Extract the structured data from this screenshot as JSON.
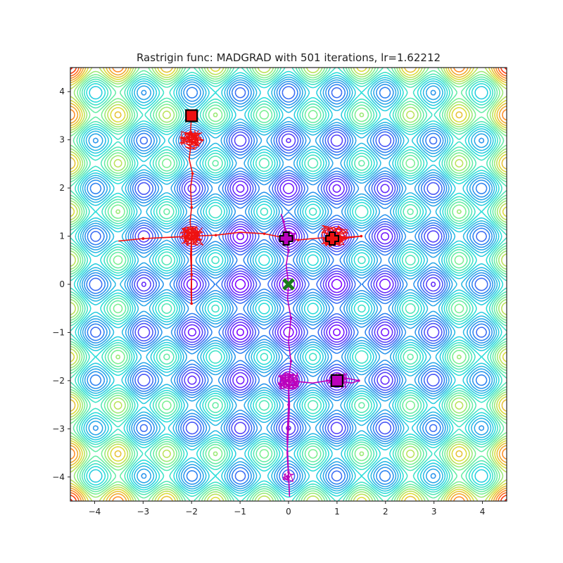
{
  "chart_data": {
    "type": "contour",
    "title": "Rastrigin func: MADGRAD with 501 iterations, lr=1.62212",
    "xlabel": "",
    "ylabel": "",
    "xlim": [
      -4.5,
      4.5
    ],
    "ylim": [
      -4.5,
      4.5
    ],
    "xticks": [
      -4,
      -3,
      -2,
      -1,
      0,
      1,
      2,
      3,
      4
    ],
    "yticks": [
      -4,
      -3,
      -2,
      -1,
      0,
      1,
      2,
      3,
      4
    ],
    "xtick_labels": [
      "−4",
      "−3",
      "−2",
      "−1",
      "0",
      "1",
      "2",
      "3",
      "4"
    ],
    "ytick_labels": [
      "−4",
      "−3",
      "−2",
      "−1",
      "0",
      "1",
      "2",
      "3",
      "4"
    ],
    "grid": false,
    "function": "Rastrigin",
    "colormap": "rainbow",
    "global_minimum": {
      "x": 0,
      "y": 0,
      "marker": "x",
      "color": "#1a7a1a"
    },
    "series": [
      {
        "color": "#ee1111",
        "start": {
          "x": -2.0,
          "y": 3.5,
          "marker": "square"
        },
        "end": {
          "x": 0.9,
          "y": 0.95,
          "marker": "plus"
        },
        "clusters": [
          {
            "x": -2.0,
            "y": 3.0,
            "spread": 0.25,
            "count": 60
          },
          {
            "x": -2.0,
            "y": 1.0,
            "spread": 0.25,
            "count": 70
          },
          {
            "x": 0.95,
            "y": 1.0,
            "spread": 0.28,
            "count": 60
          }
        ],
        "path": [
          [
            -2.0,
            3.5
          ],
          [
            -2.02,
            3.2
          ],
          [
            -2.0,
            3.0
          ],
          [
            -2.05,
            2.6
          ],
          [
            -1.98,
            2.3
          ],
          [
            -2.02,
            2.0
          ],
          [
            -2.0,
            1.6
          ],
          [
            -2.03,
            1.3
          ],
          [
            -2.0,
            1.0
          ],
          [
            -2.02,
            0.6
          ],
          [
            -2.0,
            0.2
          ],
          [
            -2.01,
            -0.15
          ],
          [
            -2.0,
            -0.4
          ],
          [
            -2.0,
            0.2
          ],
          [
            -2.0,
            1.0
          ],
          [
            -2.35,
            0.98
          ],
          [
            -3.0,
            0.95
          ],
          [
            -3.5,
            0.9
          ],
          [
            -3.0,
            0.95
          ],
          [
            -2.0,
            1.0
          ],
          [
            -1.5,
            1.02
          ],
          [
            -1.0,
            1.08
          ],
          [
            -0.5,
            1.05
          ],
          [
            0.0,
            0.95
          ],
          [
            0.2,
            0.92
          ],
          [
            0.5,
            0.95
          ],
          [
            0.9,
            0.98
          ],
          [
            1.2,
            0.98
          ],
          [
            1.5,
            1.0
          ],
          [
            1.2,
            0.96
          ],
          [
            0.9,
            0.95
          ]
        ]
      },
      {
        "color": "#bb00bb",
        "start": {
          "x": 1.0,
          "y": -2.0,
          "marker": "square"
        },
        "end": {
          "x": -0.05,
          "y": 0.95,
          "marker": "plus"
        },
        "clusters": [
          {
            "x": 0.0,
            "y": -2.0,
            "spread": 0.22,
            "count": 80
          },
          {
            "x": 1.0,
            "y": -2.0,
            "spread": 0.2,
            "count": 50
          },
          {
            "x": 0.0,
            "y": 1.0,
            "spread": 0.15,
            "count": 25
          },
          {
            "x": 0.0,
            "y": -4.0,
            "spread": 0.12,
            "count": 20
          }
        ],
        "path": [
          [
            1.0,
            -2.0
          ],
          [
            1.3,
            -2.05
          ],
          [
            1.45,
            -2.0
          ],
          [
            1.2,
            -1.95
          ],
          [
            0.8,
            -2.0
          ],
          [
            0.5,
            -2.05
          ],
          [
            0.0,
            -2.0
          ],
          [
            -0.2,
            -1.9
          ],
          [
            0.0,
            -2.1
          ],
          [
            0.02,
            -2.5
          ],
          [
            0.0,
            -3.0
          ],
          [
            -0.03,
            -3.5
          ],
          [
            0.0,
            -4.0
          ],
          [
            0.02,
            -4.4
          ],
          [
            0.0,
            -3.9
          ],
          [
            -0.03,
            -3.2
          ],
          [
            0.0,
            -2.5
          ],
          [
            0.0,
            -2.0
          ],
          [
            0.05,
            -1.6
          ],
          [
            0.0,
            -1.2
          ],
          [
            0.05,
            -0.7
          ],
          [
            -0.02,
            -0.3
          ],
          [
            0.0,
            0.0
          ],
          [
            -0.05,
            0.4
          ],
          [
            0.0,
            0.7
          ],
          [
            -0.05,
            0.95
          ],
          [
            -0.1,
            1.3
          ],
          [
            -0.15,
            1.45
          ],
          [
            -0.05,
            1.1
          ],
          [
            -0.05,
            0.95
          ]
        ]
      }
    ]
  }
}
